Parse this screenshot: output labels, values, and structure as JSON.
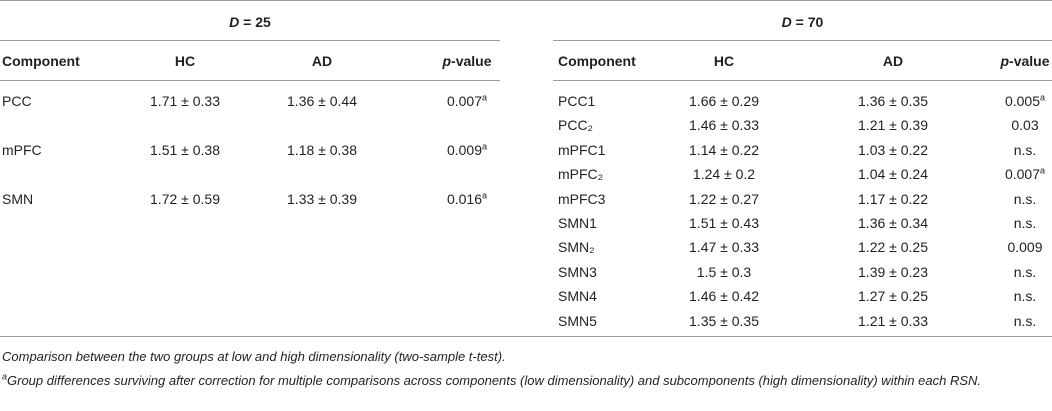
{
  "panels": [
    {
      "heading": {
        "variable": "D",
        "text": " = 25"
      },
      "columns": [
        "Component",
        "HC",
        "AD",
        {
          "italic": "p",
          "text": "-value"
        }
      ],
      "rows": [
        [
          "PCC",
          "1.71 ± 0.33",
          "1.36 ± 0.44",
          {
            "text": "0.007",
            "note": "a"
          }
        ],
        [
          "mPFC",
          "1.51 ± 0.38",
          "1.18 ± 0.38",
          {
            "text": "0.009",
            "note": "a"
          }
        ],
        [
          "SMN",
          "1.72 ± 0.59",
          "1.33 ± 0.39",
          {
            "text": "0.016",
            "note": "a"
          }
        ]
      ]
    },
    {
      "heading": {
        "variable": "D",
        "text": " = 70"
      },
      "columns": [
        "Component",
        "HC",
        "AD",
        {
          "italic": "p",
          "text": "-value"
        }
      ],
      "rows": [
        [
          "PCC1",
          "1.66 ± 0.29",
          "1.36 ± 0.35",
          {
            "text": "0.005",
            "note": "a"
          }
        ],
        [
          "PCC₂",
          "1.46 ± 0.33",
          "1.21 ± 0.39",
          "0.03"
        ],
        [
          "mPFC1",
          "1.14 ± 0.22",
          "1.03 ± 0.22",
          "n.s."
        ],
        [
          "mPFC₂",
          "1.24 ± 0.2",
          "1.04 ± 0.24",
          {
            "text": "0.007",
            "note": "a"
          }
        ],
        [
          "mPFC3",
          "1.22 ± 0.27",
          "1.17 ± 0.22",
          "n.s."
        ],
        [
          "SMN1",
          "1.51 ± 0.43",
          "1.36 ± 0.34",
          "n.s."
        ],
        [
          "SMN₂",
          "1.47 ± 0.33",
          "1.22 ± 0.25",
          "0.009"
        ],
        [
          "SMN3",
          "1.5 ± 0.3",
          "1.39 ± 0.23",
          "n.s."
        ],
        [
          "SMN4",
          "1.46 ± 0.42",
          "1.27 ± 0.25",
          "n.s."
        ],
        [
          "SMN5",
          "1.35 ± 0.35",
          "1.21 ± 0.33",
          "n.s."
        ]
      ]
    }
  ],
  "footnotes": [
    {
      "text": "Comparison between the two groups at low and high dimensionality (two-sample t-test)."
    },
    {
      "marker": "a",
      "text": "Group differences surviving after correction for multiple comparisons across components (low dimensionality) and subcomponents (high dimensionality) within each RSN."
    }
  ]
}
